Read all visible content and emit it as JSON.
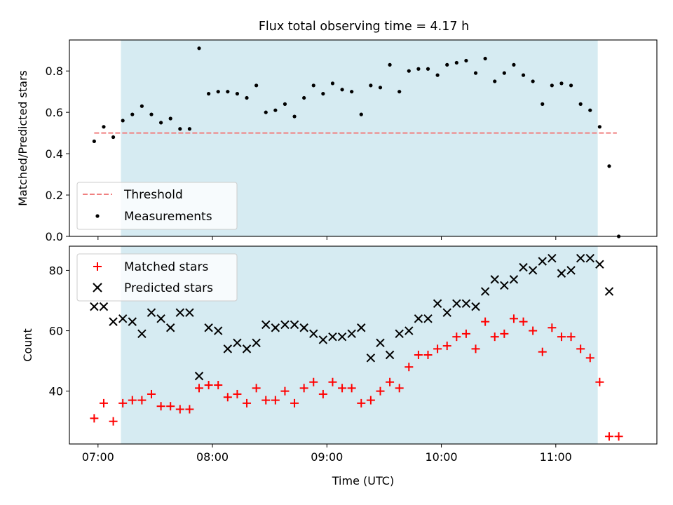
{
  "figure": {
    "title": "Flux total observing time = 4.17 h"
  },
  "colors": {
    "shade": "#add8e6",
    "threshold": "#f08080",
    "measurement": "#000000",
    "matched": "#ff0000",
    "predicted": "#000000"
  },
  "chart_data": [
    {
      "type": "scatter",
      "ylabel": "Matched/Predicted stars",
      "ylim": [
        0,
        0.95
      ],
      "yticks": [
        0.0,
        0.2,
        0.4,
        0.6,
        0.8
      ],
      "yticklabels": [
        "0.0",
        "0.2",
        "0.4",
        "0.6",
        "0.8"
      ],
      "xlim": [
        "06:45",
        "11:53"
      ],
      "shaded_span": [
        "07:12",
        "11:22"
      ],
      "threshold": {
        "value": 0.5,
        "x_range": [
          "06:58",
          "11:32"
        ]
      },
      "legend": {
        "placement": "lower-left",
        "entries": [
          "Threshold",
          "Measurements"
        ]
      },
      "series": [
        {
          "name": "Measurements",
          "marker": "dot",
          "x": [
            "06:58",
            "07:03",
            "07:08",
            "07:13",
            "07:18",
            "07:23",
            "07:28",
            "07:33",
            "07:38",
            "07:43",
            "07:48",
            "07:53",
            "07:58",
            "08:03",
            "08:08",
            "08:13",
            "08:18",
            "08:23",
            "08:28",
            "08:33",
            "08:38",
            "08:43",
            "08:48",
            "08:53",
            "08:58",
            "09:03",
            "09:08",
            "09:13",
            "09:18",
            "09:23",
            "09:28",
            "09:33",
            "09:38",
            "09:43",
            "09:48",
            "09:53",
            "09:58",
            "10:03",
            "10:08",
            "10:13",
            "10:18",
            "10:23",
            "10:28",
            "10:33",
            "10:38",
            "10:43",
            "10:48",
            "10:53",
            "10:58",
            "11:03",
            "11:08",
            "11:13",
            "11:18",
            "11:23",
            "11:28",
            "11:33"
          ],
          "y": [
            0.46,
            0.53,
            0.48,
            0.56,
            0.59,
            0.63,
            0.59,
            0.55,
            0.57,
            0.52,
            0.52,
            0.91,
            0.69,
            0.7,
            0.7,
            0.69,
            0.67,
            0.73,
            0.6,
            0.61,
            0.64,
            0.58,
            0.67,
            0.73,
            0.69,
            0.74,
            0.71,
            0.7,
            0.59,
            0.73,
            0.72,
            0.83,
            0.7,
            0.8,
            0.81,
            0.81,
            0.78,
            0.83,
            0.84,
            0.85,
            0.79,
            0.86,
            0.75,
            0.79,
            0.83,
            0.78,
            0.75,
            0.64,
            0.73,
            0.74,
            0.73,
            0.64,
            0.61,
            0.53,
            0.34,
            0.0
          ]
        }
      ]
    },
    {
      "type": "scatter",
      "xlabel": "Time (UTC)",
      "ylabel": "Count",
      "ylim": [
        22.5,
        88
      ],
      "yticks": [
        40,
        60,
        80
      ],
      "yticklabels": [
        "40",
        "60",
        "80"
      ],
      "xlim": [
        "06:45",
        "11:53"
      ],
      "xticks": [
        "07:00",
        "08:00",
        "09:00",
        "10:00",
        "11:00"
      ],
      "xticklabels": [
        "07:00",
        "08:00",
        "09:00",
        "10:00",
        "11:00"
      ],
      "shaded_span": [
        "07:12",
        "11:22"
      ],
      "legend": {
        "placement": "upper-left",
        "entries": [
          "Matched stars",
          "Predicted stars"
        ]
      },
      "x": [
        "06:58",
        "07:03",
        "07:08",
        "07:13",
        "07:18",
        "07:23",
        "07:28",
        "07:33",
        "07:38",
        "07:43",
        "07:48",
        "07:53",
        "07:58",
        "08:03",
        "08:08",
        "08:13",
        "08:18",
        "08:23",
        "08:28",
        "08:33",
        "08:38",
        "08:43",
        "08:48",
        "08:53",
        "08:58",
        "09:03",
        "09:08",
        "09:13",
        "09:18",
        "09:23",
        "09:28",
        "09:33",
        "09:38",
        "09:43",
        "09:48",
        "09:53",
        "09:58",
        "10:03",
        "10:08",
        "10:13",
        "10:18",
        "10:23",
        "10:28",
        "10:33",
        "10:38",
        "10:43",
        "10:48",
        "10:53",
        "10:58",
        "11:03",
        "11:08",
        "11:13",
        "11:18",
        "11:23",
        "11:28",
        "11:33"
      ],
      "series": [
        {
          "name": "Matched stars",
          "marker": "plus",
          "values": [
            31,
            36,
            30,
            36,
            37,
            37,
            39,
            35,
            35,
            34,
            34,
            41,
            42,
            42,
            38,
            39,
            36,
            41,
            37,
            37,
            40,
            36,
            41,
            43,
            39,
            43,
            41,
            41,
            36,
            37,
            40,
            43,
            41,
            48,
            52,
            52,
            54,
            55,
            58,
            59,
            54,
            63,
            58,
            59,
            64,
            63,
            60,
            53,
            61,
            58,
            58,
            54,
            51,
            43,
            25,
            25
          ]
        },
        {
          "name": "Predicted stars",
          "marker": "x",
          "values": [
            68,
            68,
            63,
            64,
            63,
            59,
            66,
            64,
            61,
            66,
            66,
            45,
            61,
            60,
            54,
            56,
            54,
            56,
            62,
            61,
            62,
            62,
            61,
            59,
            57,
            58,
            58,
            59,
            61,
            51,
            56,
            52,
            59,
            60,
            64,
            64,
            69,
            66,
            69,
            69,
            68,
            73,
            77,
            75,
            77,
            81,
            80,
            83,
            84,
            79,
            80,
            84,
            84,
            82,
            73,
            null
          ]
        }
      ]
    }
  ]
}
